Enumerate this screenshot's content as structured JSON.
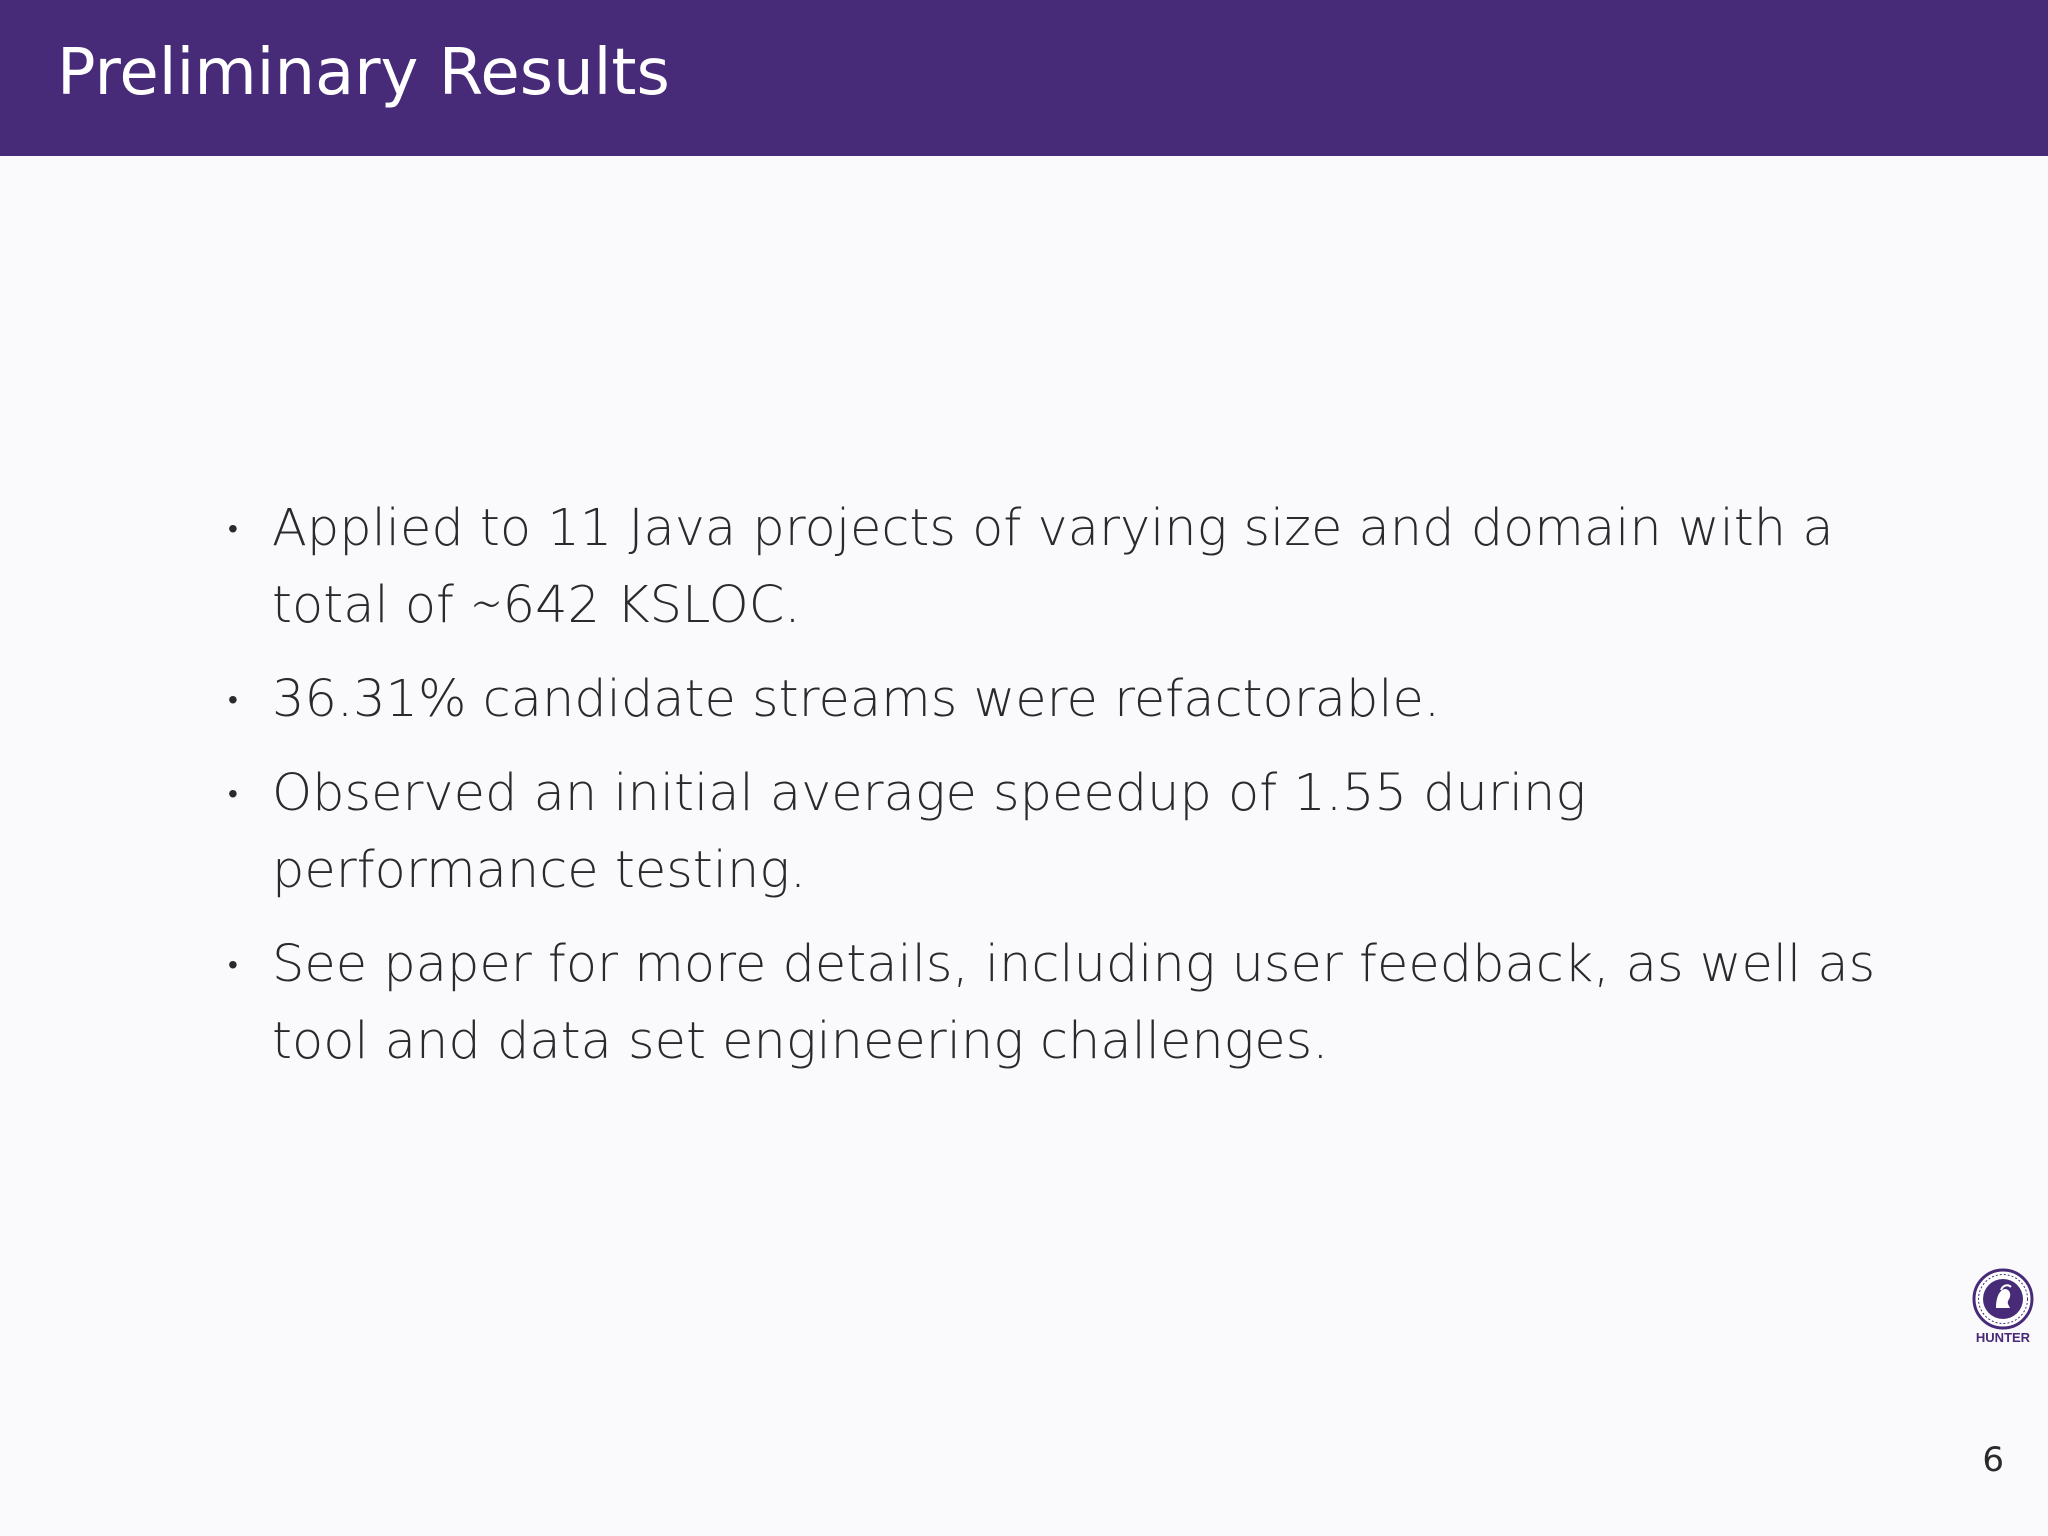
{
  "slide": {
    "title": "Preliminary Results",
    "page_number": "6"
  },
  "bullets": [
    {
      "text": "Applied to 11 Java projects of varying size and domain with a total of ∼642 KSLOC."
    },
    {
      "text": "36.31% candidate streams were refactorable."
    },
    {
      "text": "Observed an initial average speedup of 1.55 during performance testing."
    },
    {
      "text": "See paper for more details, including user feedback, as well as tool and data set engineering challenges."
    }
  ],
  "logo": {
    "label": "HUNTER",
    "icon": "hunter-college-seal-icon"
  },
  "colors": {
    "header": "#482b78",
    "background": "#faf9fc",
    "text": "#2a2a2a"
  }
}
